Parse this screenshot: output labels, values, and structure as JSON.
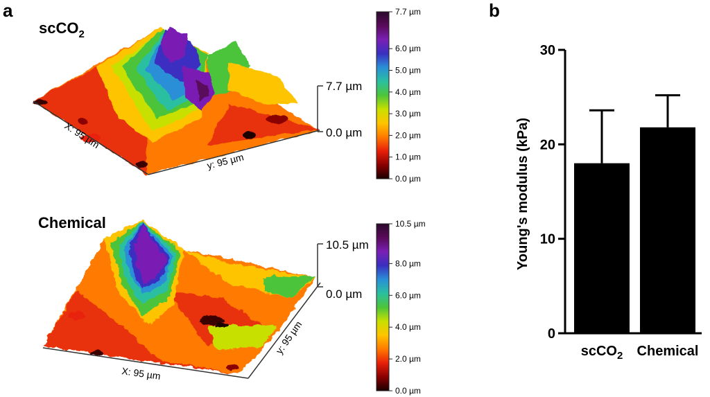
{
  "panel_a": {
    "letter": "a",
    "surfaces": [
      {
        "title_main": "scCO",
        "title_sub": "2",
        "zaxis_top": "7.7 µm",
        "zaxis_bottom": "0.0 µm",
        "x_dim": "X: 95 µm",
        "y_dim": "y: 95 µm",
        "colorbar_ticks": [
          "7.7 µm",
          "6.0 µm",
          "5.0 µm",
          "4.0 µm",
          "3.0 µm",
          "2.0 µm",
          "1.0 µm",
          "0.0 µm"
        ],
        "colorbar_tick_values": [
          7.7,
          6.0,
          5.0,
          4.0,
          3.0,
          2.0,
          1.0,
          0.0
        ],
        "colorbar_max": 7.7
      },
      {
        "title_main": "Chemical",
        "title_sub": "",
        "zaxis_top": "10.5 µm",
        "zaxis_bottom": "0.0 µm",
        "x_dim": "X: 95 µm",
        "y_dim": "y: 95 µm",
        "colorbar_ticks": [
          "10.5 µm",
          "8.0 µm",
          "6.0 µm",
          "4.0 µm",
          "2.0 µm",
          "0.0 µm"
        ],
        "colorbar_tick_values": [
          10.5,
          8.0,
          6.0,
          4.0,
          2.0,
          0.0
        ],
        "colorbar_max": 10.5
      }
    ],
    "colormap": [
      "#1a0000",
      "#8b0000",
      "#e8200a",
      "#ff7a00",
      "#ffc400",
      "#c8e000",
      "#4cc43a",
      "#2bbfa0",
      "#2a8fd6",
      "#3a2fc0",
      "#7a1fb4",
      "#5a0a5a",
      "#2b0a2b"
    ]
  },
  "panel_b": {
    "letter": "b"
  },
  "chart_data": {
    "type": "bar",
    "categories": [
      "scCO2",
      "Chemical"
    ],
    "category_labels": [
      {
        "main": "scCO",
        "sub": "2"
      },
      {
        "main": "Chemical",
        "sub": ""
      }
    ],
    "values": [
      18.0,
      21.8
    ],
    "error_upper": [
      5.6,
      3.4
    ],
    "ylabel": "Young's modulus (kPa)",
    "ylim": [
      0,
      30
    ],
    "yticks": [
      0,
      10,
      20,
      30
    ],
    "bar_color": "#000000"
  }
}
